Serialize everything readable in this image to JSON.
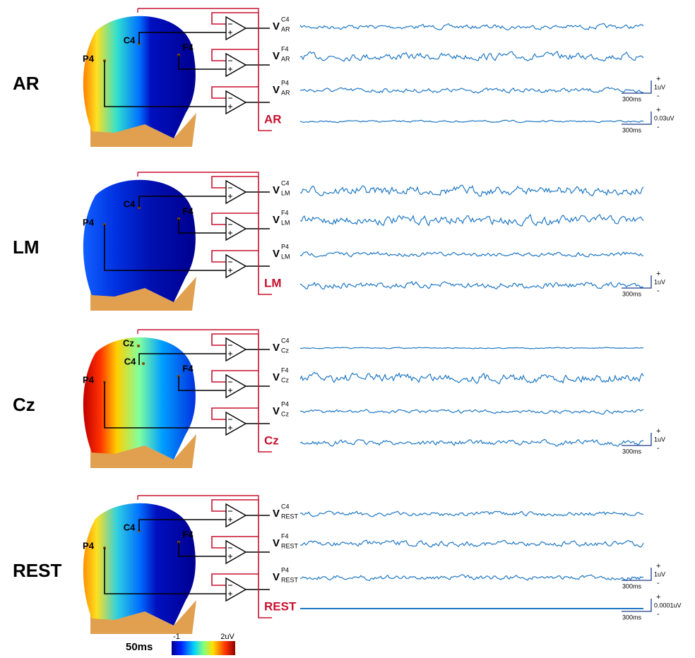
{
  "panels": [
    {
      "label": "AR",
      "electrodes": [
        "C4",
        "F4",
        "P4"
      ],
      "rows": [
        {
          "symbol": "V",
          "electrode": "C4",
          "reference": "AR"
        },
        {
          "symbol": "V",
          "electrode": "F4",
          "reference": "AR"
        },
        {
          "symbol": "V",
          "electrode": "P4",
          "reference": "AR",
          "scale_bar": {
            "plus": "+",
            "amplitude": "1uV",
            "minus": "-",
            "time": "300ms"
          }
        },
        {
          "reference_label": "AR",
          "scale_bar": {
            "plus": "+",
            "amplitude": "0.03uV",
            "minus": "-",
            "time": "300ms"
          }
        }
      ]
    },
    {
      "label": "LM",
      "electrodes": [
        "C4",
        "F4",
        "P4"
      ],
      "rows": [
        {
          "symbol": "V",
          "electrode": "C4",
          "reference": "LM"
        },
        {
          "symbol": "V",
          "electrode": "F4",
          "reference": "LM"
        },
        {
          "symbol": "V",
          "electrode": "P4",
          "reference": "LM"
        },
        {
          "reference_label": "LM",
          "scale_bar": {
            "plus": "+",
            "amplitude": "1uV",
            "minus": "-",
            "time": "300ms"
          }
        }
      ]
    },
    {
      "label": "Cz",
      "electrodes": [
        "Cz",
        "C4",
        "F4",
        "P4"
      ],
      "rows": [
        {
          "symbol": "V",
          "electrode": "C4",
          "reference": "Cz"
        },
        {
          "symbol": "V",
          "electrode": "F4",
          "reference": "Cz"
        },
        {
          "symbol": "V",
          "electrode": "P4",
          "reference": "Cz"
        },
        {
          "reference_label": "Cz",
          "scale_bar": {
            "plus": "+",
            "amplitude": "1uV",
            "minus": "-",
            "time": "300ms"
          }
        }
      ]
    },
    {
      "label": "REST",
      "electrodes": [
        "C4",
        "F4",
        "P4"
      ],
      "rows": [
        {
          "symbol": "V",
          "electrode": "C4",
          "reference": "REST"
        },
        {
          "symbol": "V",
          "electrode": "F4",
          "reference": "REST"
        },
        {
          "symbol": "V",
          "electrode": "P4",
          "reference": "REST",
          "scale_bar": {
            "plus": "+",
            "amplitude": "1uV",
            "minus": "-",
            "time": "300ms"
          }
        },
        {
          "reference_label": "REST",
          "scale_bar": {
            "plus": "+",
            "amplitude": "0.0001uV",
            "minus": "-",
            "time": "300ms"
          }
        }
      ]
    }
  ],
  "colorbar": {
    "time": "50ms",
    "min": "-1",
    "max": "2uV"
  }
}
